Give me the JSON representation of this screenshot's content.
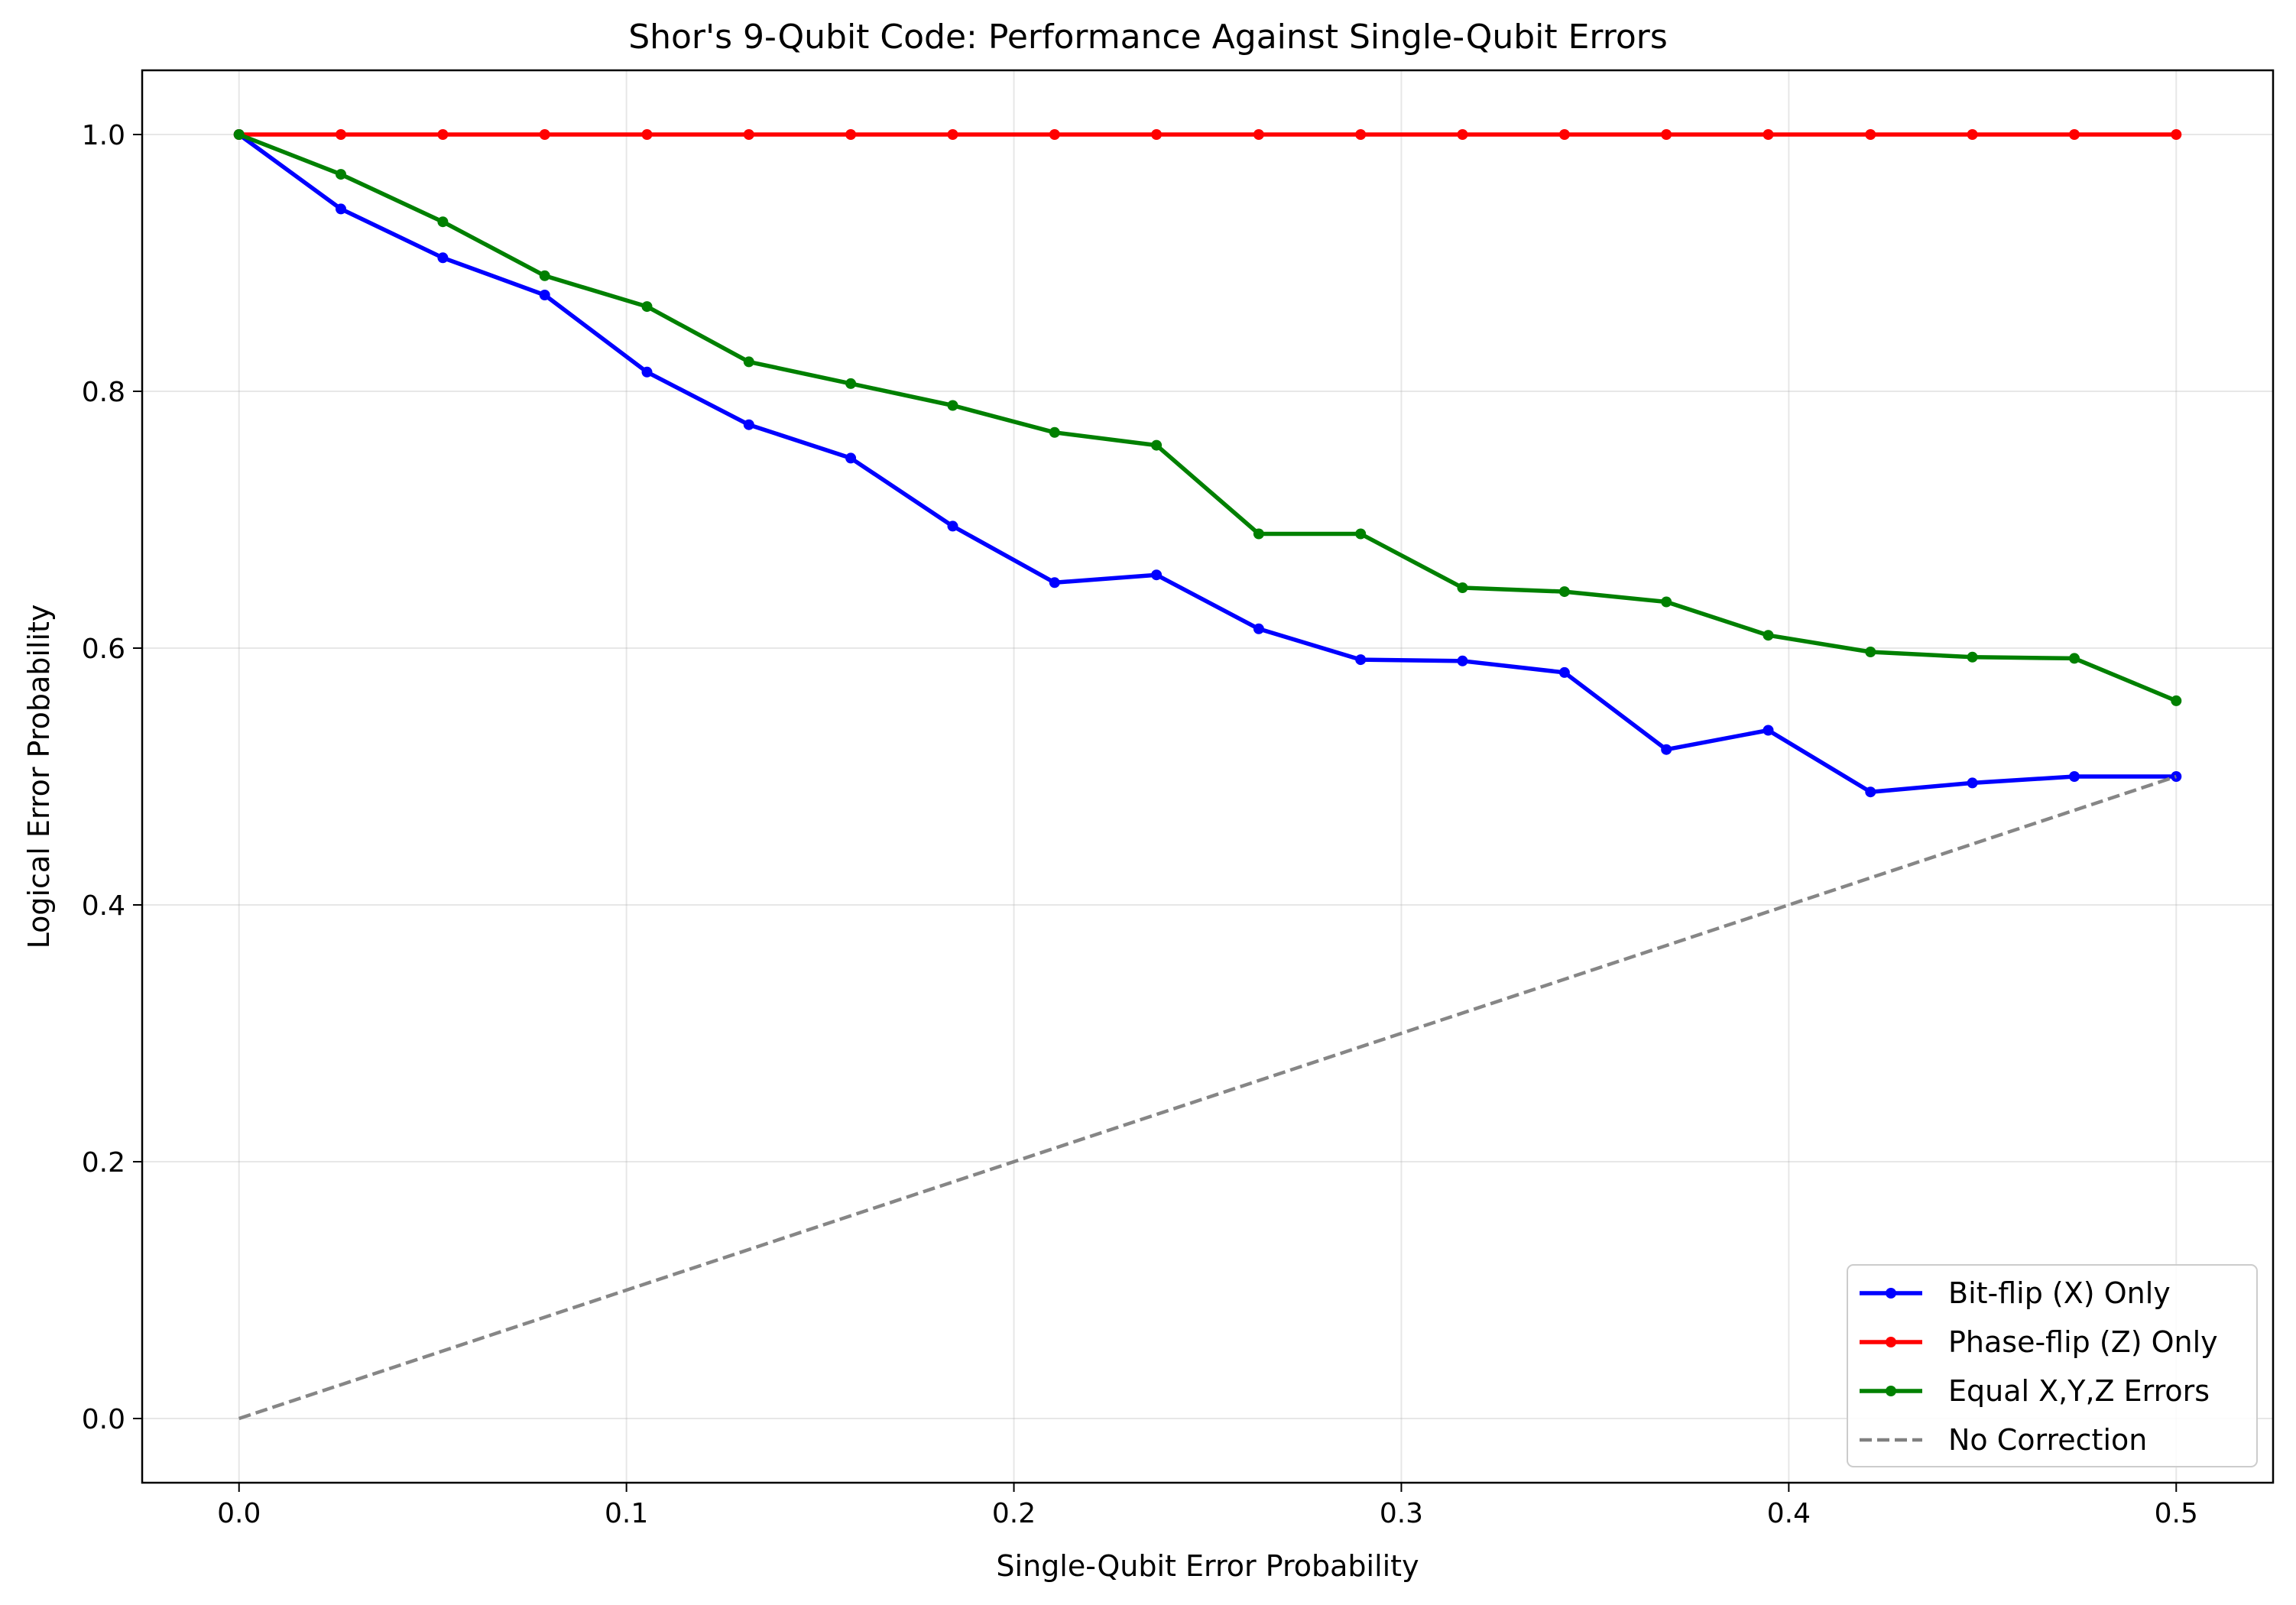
{
  "chart_data": {
    "type": "line",
    "title": "Shor's 9-Qubit Code: Performance Against Single-Qubit Errors",
    "xlabel": "Single-Qubit Error Probability",
    "ylabel": "Logical Error Probability",
    "xlim": [
      -0.025,
      0.525
    ],
    "ylim": [
      -0.05,
      1.05
    ],
    "x_ticks": [
      0.0,
      0.1,
      0.2,
      0.3,
      0.4,
      0.5
    ],
    "x_tick_labels": [
      "0.0",
      "0.1",
      "0.2",
      "0.3",
      "0.4",
      "0.5"
    ],
    "y_ticks": [
      0.0,
      0.2,
      0.4,
      0.6,
      0.8,
      1.0
    ],
    "y_tick_labels": [
      "0.0",
      "0.2",
      "0.4",
      "0.6",
      "0.8",
      "1.0"
    ],
    "grid": true,
    "legend_position": "bottom-right",
    "x": [
      0.0,
      0.0263,
      0.0526,
      0.0789,
      0.1053,
      0.1316,
      0.1579,
      0.1842,
      0.2105,
      0.2368,
      0.2632,
      0.2895,
      0.3158,
      0.3421,
      0.3684,
      0.3947,
      0.4211,
      0.4474,
      0.4737,
      0.5
    ],
    "series": [
      {
        "name": "Bit-flip (X) Only",
        "color": "#0000ff",
        "style": "solid-with-markers",
        "values": [
          1.0,
          0.942,
          0.904,
          0.875,
          0.815,
          0.774,
          0.748,
          0.695,
          0.651,
          0.657,
          0.615,
          0.591,
          0.59,
          0.581,
          0.521,
          0.536,
          0.488,
          0.495,
          0.5,
          0.5
        ]
      },
      {
        "name": "Phase-flip (Z) Only",
        "color": "#ff0000",
        "style": "solid-with-markers",
        "values": [
          1.0,
          1.0,
          1.0,
          1.0,
          1.0,
          1.0,
          1.0,
          1.0,
          1.0,
          1.0,
          1.0,
          1.0,
          1.0,
          1.0,
          1.0,
          1.0,
          1.0,
          1.0,
          1.0,
          1.0
        ]
      },
      {
        "name": "Equal X,Y,Z Errors",
        "color": "#008000",
        "style": "solid-with-markers",
        "values": [
          1.0,
          0.969,
          0.932,
          0.89,
          0.866,
          0.823,
          0.806,
          0.789,
          0.768,
          0.758,
          0.689,
          0.689,
          0.647,
          0.644,
          0.636,
          0.61,
          0.597,
          0.593,
          0.592,
          0.559
        ]
      },
      {
        "name": "No Correction",
        "color": "#808080",
        "style": "dashed",
        "x": [
          0.0,
          0.5
        ],
        "values": [
          0.0,
          0.5
        ]
      }
    ]
  }
}
